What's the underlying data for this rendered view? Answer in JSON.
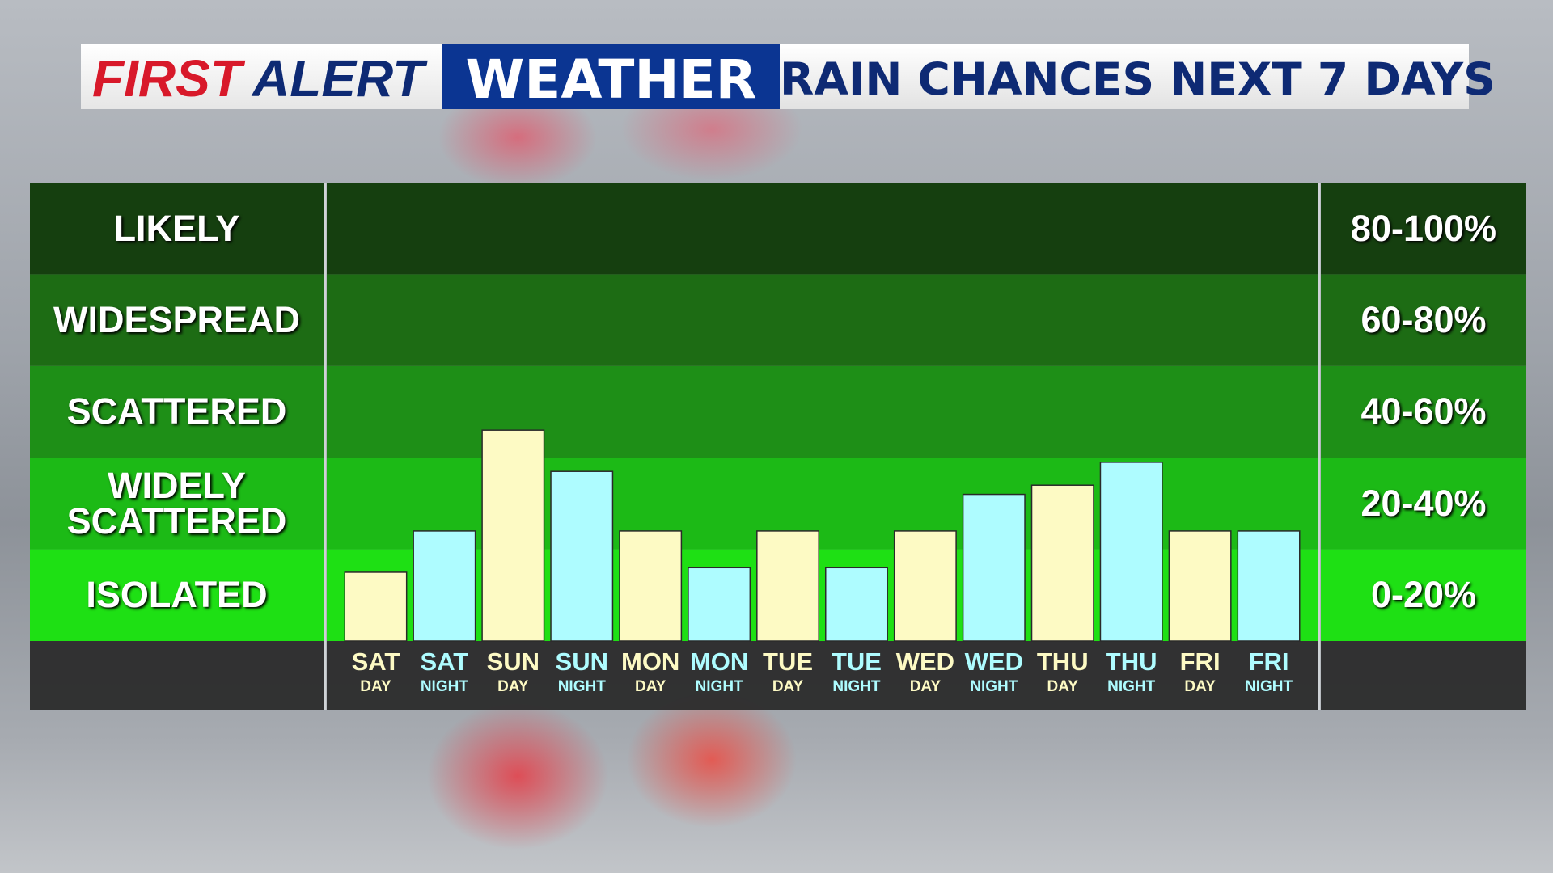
{
  "chart_data": {
    "type": "bar",
    "brand_first": "FIRST",
    "brand_second": "ALERT",
    "brand_weather": "WEATHER",
    "title": "RAIN CHANCES NEXT 7 DAYS",
    "categories": [
      "SAT",
      "SAT",
      "SUN",
      "SUN",
      "MON",
      "MON",
      "TUE",
      "TUE",
      "WED",
      "WED",
      "THU",
      "THU",
      "FRI",
      "FRI"
    ],
    "sub_categories": [
      "DAY",
      "NIGHT",
      "DAY",
      "NIGHT",
      "DAY",
      "NIGHT",
      "DAY",
      "NIGHT",
      "DAY",
      "NIGHT",
      "DAY",
      "NIGHT",
      "DAY",
      "NIGHT"
    ],
    "values": [
      15,
      24,
      46,
      37,
      24,
      16,
      24,
      16,
      24,
      32,
      34,
      39,
      24,
      24
    ],
    "bar_colors": [
      "#fdfac4",
      "#aefcff",
      "#fdfac4",
      "#aefcff",
      "#fdfac4",
      "#aefcff",
      "#fdfac4",
      "#aefcff",
      "#fdfac4",
      "#aefcff",
      "#fdfac4",
      "#aefcff",
      "#fdfac4",
      "#aefcff"
    ],
    "ylim": [
      0,
      100
    ],
    "bands": [
      {
        "label": "ISOLATED",
        "range_label": "0-20%",
        "from": 0,
        "to": 20,
        "color": "#1ee014"
      },
      {
        "label": "WIDELY SCATTERED",
        "range_label": "20-40%",
        "from": 20,
        "to": 40,
        "color": "#1cba16"
      },
      {
        "label": "SCATTERED",
        "range_label": "40-60%",
        "from": 40,
        "to": 60,
        "color": "#1e8f17"
      },
      {
        "label": "WIDESPREAD",
        "range_label": "60-80%",
        "from": 60,
        "to": 80,
        "color": "#1d6c14"
      },
      {
        "label": "LIKELY",
        "range_label": "80-100%",
        "from": 80,
        "to": 100,
        "color": "#153f0f"
      }
    ]
  }
}
